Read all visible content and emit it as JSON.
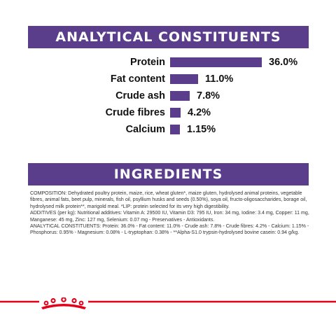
{
  "analytical": {
    "title": "ANALYTICAL CONSTITUENTS",
    "items": [
      {
        "label": "Protein",
        "value": "36.0%",
        "amount": 36.0
      },
      {
        "label": "Fat content",
        "value": "11.0%",
        "amount": 11.0
      },
      {
        "label": "Crude ash",
        "value": "7.8%",
        "amount": 7.8
      },
      {
        "label": "Crude fibres",
        "value": "4.2%",
        "amount": 4.2
      },
      {
        "label": "Calcium",
        "value": "1.15%",
        "amount": 1.15
      }
    ]
  },
  "ingredients": {
    "title": "INGREDIENTS",
    "composition": "COMPOSITION: Dehydrated poultry protein, maize, rice, wheat gluten*, maize gluten, hydrolysed animal proteins, vegetable fibres, animal fats, beet pulp, minerals, fish oil, psyllium husks and seeds (0.50%), soya oil, fructo-oligosaccharides, borage oil, hydrolysed milk protein**, marigold meal. *LIP: protein selected for its very high digestibility.",
    "additives": "ADDITIVES (per kg): Nutritional additives: Vitamin A: 29500 IU, Vitamin D3: 795 IU, Iron: 34 mg, Iodine: 3.4 mg, Copper: 11 mg, Manganese: 45 mg, Zinc: 127 mg, Selenium: 0.07 mg - Preservatives - Antioxidants.",
    "analytical": "ANALYTICAL CONSTITUENTS: Protein: 36.0% - Fat content: 11.0% - Crude ash: 7.8% - Crude fibres: 4.2% - Calcium: 1.15% - Phosphorus: 0.95% - Magnesium: 0.08% - L-tryptophan: 0.38% - **Alpha-S1.0 trypsin-hydrolysed bovine casein: 0.94 g/kg."
  },
  "colors": {
    "banner": "#5a3e8c",
    "bar": "#5a3e8c",
    "footer_line": "#e2001a",
    "logo": "#e2001a"
  },
  "icons": {
    "footer_logo": "royal-canin-crown-icon"
  }
}
